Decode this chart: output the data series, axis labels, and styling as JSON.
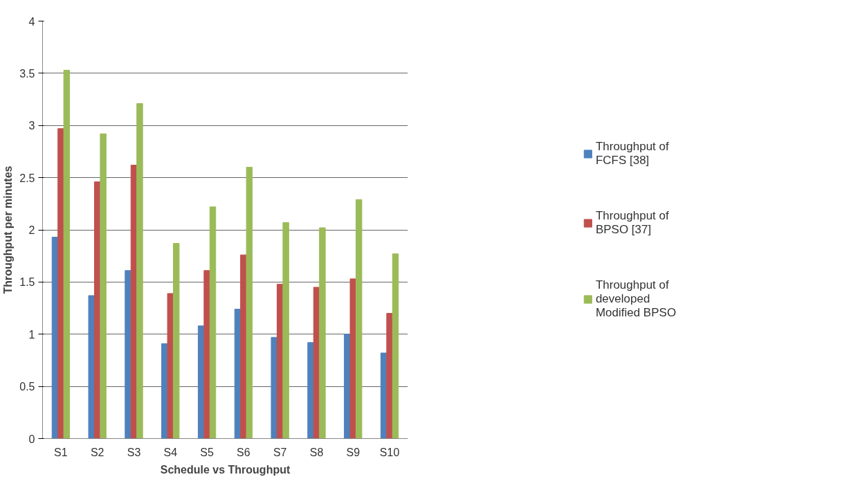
{
  "chart_data": {
    "type": "bar",
    "xlabel": "Schedule vs Throughput",
    "ylabel": "Throughput per minutes",
    "categories": [
      "S1",
      "S2",
      "S3",
      "S4",
      "S5",
      "S6",
      "S7",
      "S8",
      "S9",
      "S10"
    ],
    "series": [
      {
        "name": "Throughput of FCFS [38]",
        "color": "#4f81bd",
        "values": [
          1.93,
          1.37,
          1.61,
          0.91,
          1.08,
          1.24,
          0.97,
          0.92,
          1.0,
          0.82
        ]
      },
      {
        "name": "Throughput of BPSO [37]",
        "color": "#c0504d",
        "values": [
          2.97,
          2.46,
          2.62,
          1.39,
          1.61,
          1.76,
          1.48,
          1.45,
          1.53,
          1.2
        ]
      },
      {
        "name": "Throughput of developed Modified BPSO",
        "color": "#9bbb59",
        "values": [
          3.53,
          2.92,
          3.21,
          1.87,
          2.22,
          2.6,
          2.07,
          2.02,
          2.29,
          1.77
        ]
      }
    ],
    "ylim": [
      0,
      4
    ],
    "yticks": [
      0,
      0.5,
      1,
      1.5,
      2,
      2.5,
      3,
      3.5,
      4
    ],
    "grid": "y",
    "legend": "right"
  }
}
